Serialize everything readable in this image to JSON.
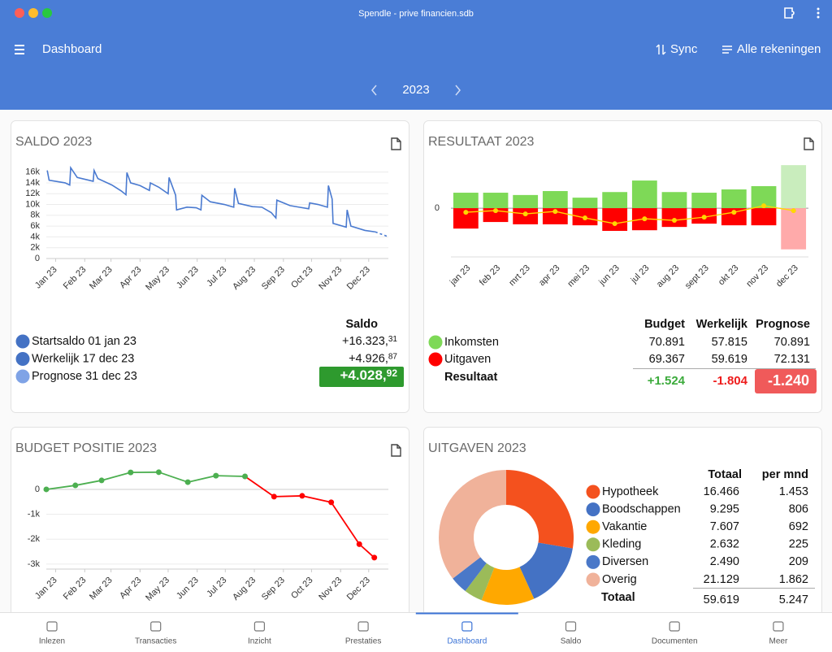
{
  "window": {
    "title": "Spendle - prive financien.sdb"
  },
  "toolbar": {
    "title": "Dashboard",
    "sync": "Sync",
    "accounts": "Alle rekeningen",
    "year": "2023"
  },
  "saldo": {
    "title": "SALDO 2023",
    "chart": {
      "type": "line",
      "xlim": [
        0,
        365
      ],
      "ylim": [
        0,
        17000
      ],
      "xticks": [
        {
          "value": 10,
          "label": "Jan 23"
        },
        {
          "value": 41,
          "label": "Feb 23"
        },
        {
          "value": 69,
          "label": "Mar 23"
        },
        {
          "value": 100,
          "label": "Apr 23"
        },
        {
          "value": 130,
          "label": "May 23"
        },
        {
          "value": 161,
          "label": "Jun 23"
        },
        {
          "value": 191,
          "label": "Jul 23"
        },
        {
          "value": 222,
          "label": "Aug 23"
        },
        {
          "value": 253,
          "label": "Sep 23"
        },
        {
          "value": 283,
          "label": "Oct 23"
        },
        {
          "value": 314,
          "label": "Nov 23"
        },
        {
          "value": 344,
          "label": "Dec 23"
        }
      ],
      "yticks": [
        0,
        {
          "value": 2000,
          "label": "2k"
        },
        {
          "value": 4000,
          "label": "4k"
        },
        {
          "value": 6000,
          "label": "6k"
        },
        {
          "value": 8000,
          "label": "8k"
        },
        {
          "value": 10000,
          "label": "10k"
        },
        {
          "value": 12000,
          "label": "12k"
        },
        {
          "value": 14000,
          "label": "14k"
        },
        {
          "value": 16000,
          "label": "16k"
        }
      ],
      "grid": true,
      "series": [
        {
          "color": "#4a7ad0",
          "dashed": false,
          "x": [
            1,
            3,
            20,
            25,
            26,
            33,
            50,
            51,
            55,
            70,
            80,
            85,
            86,
            90,
            100,
            110,
            111,
            120,
            130,
            131,
            138,
            139,
            150,
            160,
            165,
            166,
            175,
            190,
            200,
            201,
            205,
            220,
            230,
            240,
            245,
            246,
            260,
            270,
            280,
            281,
            290,
            300,
            301,
            305,
            306,
            320,
            321,
            325,
            340,
            351
          ],
          "values": [
            16300,
            14500,
            14000,
            13600,
            16800,
            15000,
            14300,
            16300,
            14800,
            13600,
            12500,
            11800,
            15900,
            14000,
            13500,
            12600,
            14000,
            13200,
            12000,
            15000,
            11700,
            9000,
            9500,
            9400,
            9000,
            11700,
            10500,
            10000,
            9500,
            13000,
            10200,
            9600,
            9500,
            8500,
            7500,
            10800,
            9800,
            9500,
            9200,
            10300,
            10000,
            9500,
            13500,
            11000,
            6500,
            5800,
            9000,
            6000,
            5200,
            4927
          ]
        },
        {
          "color": "#4a7ad0",
          "dashed": true,
          "x": [
            351,
            365
          ],
          "values": [
            4927,
            4029
          ]
        }
      ]
    },
    "table": {
      "header": "Saldo",
      "rows": [
        {
          "label": "Startsaldo 01 jan 23",
          "whole": "+16.323,",
          "cents": "31",
          "color": "#4472c4"
        },
        {
          "label": "Werkelijk 17 dec 23",
          "whole": "+4.926,",
          "cents": "87",
          "color": "#4472c4"
        },
        {
          "label": "Prognose 31 dec 23",
          "whole": "+4.028,",
          "cents": "92",
          "color": "#7fa3e6",
          "box": "#2e9a2e"
        }
      ]
    }
  },
  "resultaat": {
    "title": "RESULTAAT 2023",
    "chart": {
      "type": "bar",
      "categories": [
        "jan 23",
        "feb 23",
        "mrt 23",
        "apr 23",
        "mei 23",
        "jun 23",
        "jul 23",
        "aug 23",
        "sept 23",
        "okt 23",
        "nov 23",
        "dec 23"
      ],
      "ylim": [
        -14800,
        13850
      ],
      "yticks": [
        0
      ],
      "series": [
        {
          "name": "Inkomsten",
          "color": "#7ed957",
          "colors": [
            "#7ed957",
            "#7ed957",
            "#7ed957",
            "#7ed957",
            "#7ed957",
            "#7ed957",
            "#7ed957",
            "#7ed957",
            "#7ed957",
            "#7ed957",
            "#7ed957",
            "#c9edbd"
          ],
          "values": [
            4700,
            4700,
            4000,
            5200,
            3200,
            4900,
            8400,
            4900,
            4700,
            5700,
            6700,
            13076
          ]
        },
        {
          "name": "Uitgaven",
          "color": "#ff0000",
          "colors": [
            "#ff0000",
            "#ff0000",
            "#ff0000",
            "#ff0000",
            "#ff0000",
            "#ff0000",
            "#ff0000",
            "#ff0000",
            "#ff0000",
            "#ff0000",
            "#ff0000",
            "#ffaaaa"
          ],
          "values": [
            -6200,
            -4200,
            -4900,
            -4900,
            -5200,
            -6900,
            -6700,
            -5700,
            -4700,
            -5200,
            -5200,
            -12512
          ]
        },
        {
          "name": "Resultaat",
          "type": "line",
          "color": "#ffd700",
          "values": [
            -1235,
            -740,
            -1730,
            -990,
            -2960,
            -4690,
            -3210,
            -3700,
            -2720,
            -1235,
            740,
            -740
          ]
        }
      ]
    },
    "table": {
      "columns": [
        "Budget",
        "Werkelijk",
        "Prognose"
      ],
      "rows": [
        [
          "70.891",
          "57.815",
          "70.891"
        ],
        [
          "69.367",
          "59.619",
          "72.131"
        ]
      ],
      "result": [
        "+1.524",
        "-1.804",
        "-1.240"
      ],
      "result_colors": [
        "#3cab3c",
        "#ee1c1c",
        "#ffffff"
      ],
      "prognose_box": "#f05a5a"
    }
  },
  "budget": {
    "title": "BUDGET POSITIE 2023",
    "chart": {
      "type": "line",
      "markers": true,
      "xlim": [
        0,
        365
      ],
      "ylim": [
        -3200,
        880
      ],
      "xticks": [
        {
          "value": 10,
          "label": "Jan 23"
        },
        {
          "value": 41,
          "label": "Feb 23"
        },
        {
          "value": 69,
          "label": "Mar 23"
        },
        {
          "value": 100,
          "label": "Apr 23"
        },
        {
          "value": 130,
          "label": "May 23"
        },
        {
          "value": 161,
          "label": "Jun 23"
        },
        {
          "value": 191,
          "label": "Jul 23"
        },
        {
          "value": 222,
          "label": "Aug 23"
        },
        {
          "value": 253,
          "label": "Sep 23"
        },
        {
          "value": 283,
          "label": "Oct 23"
        },
        {
          "value": 314,
          "label": "Nov 23"
        },
        {
          "value": 344,
          "label": "Dec 23"
        }
      ],
      "yticks": [
        0,
        {
          "value": -1000,
          "label": "-1k"
        },
        {
          "value": -2000,
          "label": "-2k"
        },
        {
          "value": -3000,
          "label": "-3k"
        }
      ],
      "grid": true,
      "series": [
        {
          "color": "#4caf50",
          "negative_color": "#ff0000",
          "x": [
            0,
            31,
            59,
            90,
            120,
            151,
            181,
            212,
            243,
            273,
            304,
            334,
            350
          ],
          "values": [
            0,
            160,
            360,
            680,
            690,
            290,
            550,
            520,
            -290,
            -260,
            -520,
            -2200,
            -2740
          ]
        }
      ]
    }
  },
  "uitgaven": {
    "title": "UITGAVEN 2023",
    "chart": {
      "type": "pie",
      "categories": [
        "Hypotheek",
        "Boodschappen",
        "Vakantie",
        "Kleding",
        "Diversen",
        "Overig"
      ],
      "values": [
        16466,
        9295,
        7607,
        2632,
        2490,
        21129
      ],
      "value_labels": [
        "16.466",
        "9.295",
        "7.607",
        "2.632",
        "2.490",
        "21.129"
      ],
      "colors": [
        "#f4511e",
        "#4472c4",
        "#ffa800",
        "#9bbb59",
        "#4a78c8",
        "#f0b29a"
      ]
    },
    "table": {
      "columns": [
        "Totaal",
        "per mnd"
      ],
      "per_month": [
        "1.453",
        "806",
        "692",
        "225",
        "209",
        "1.862"
      ],
      "total_label": "Totaal",
      "total": "59.619",
      "total_per_month": "5.247"
    }
  },
  "nav": {
    "items": [
      "Inlezen",
      "Transacties",
      "Inzicht",
      "Prestaties",
      "Dashboard",
      "Saldo",
      "Documenten",
      "Meer"
    ],
    "active": 4
  }
}
